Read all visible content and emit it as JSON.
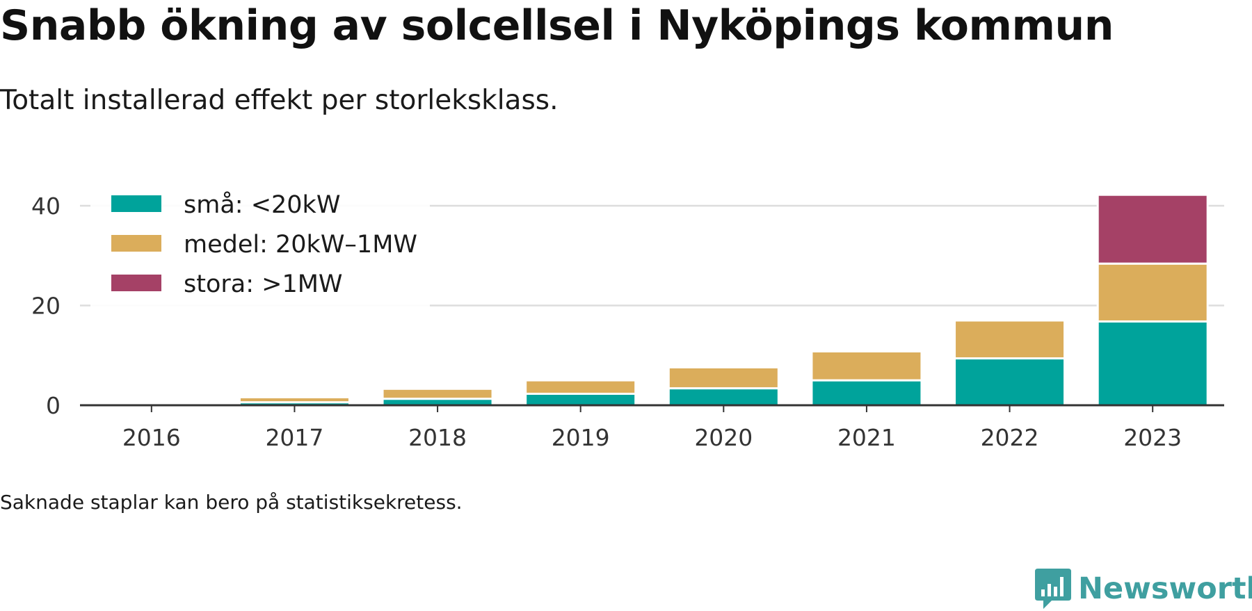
{
  "header": {
    "title": "Snabb ökning av solcellsel i Nyköpings kommun",
    "subtitle": "Totalt installerad effekt per storleksklass."
  },
  "footnote": "Saknade staplar kan bero på statistiksekretess.",
  "brand": {
    "name": "Newsworthy",
    "icon": "newsworthy-logo-icon",
    "color": "#3f9fa0"
  },
  "chart_data": {
    "type": "bar",
    "stacked": true,
    "title": "",
    "xlabel": "",
    "ylabel": "",
    "categories": [
      "2016",
      "2017",
      "2018",
      "2019",
      "2020",
      "2021",
      "2022",
      "2023"
    ],
    "series": [
      {
        "name": "små: <20kW",
        "color": "#00a39b",
        "values": [
          0.1,
          0.6,
          1.3,
          2.3,
          3.4,
          5.0,
          9.4,
          16.8
        ]
      },
      {
        "name": "medel: 20kW–1MW",
        "color": "#dbad5b",
        "values": [
          0.0,
          1.0,
          2.0,
          2.7,
          4.2,
          5.8,
          7.6,
          11.6
        ]
      },
      {
        "name": "stora: >1MW",
        "color": "#a54166",
        "values": [
          0,
          0,
          0,
          0,
          0,
          0,
          0,
          13.8
        ]
      }
    ],
    "yticks": [
      0,
      20,
      40
    ],
    "ylim": [
      0,
      42.2
    ],
    "grid": true,
    "legend": "top-left"
  }
}
